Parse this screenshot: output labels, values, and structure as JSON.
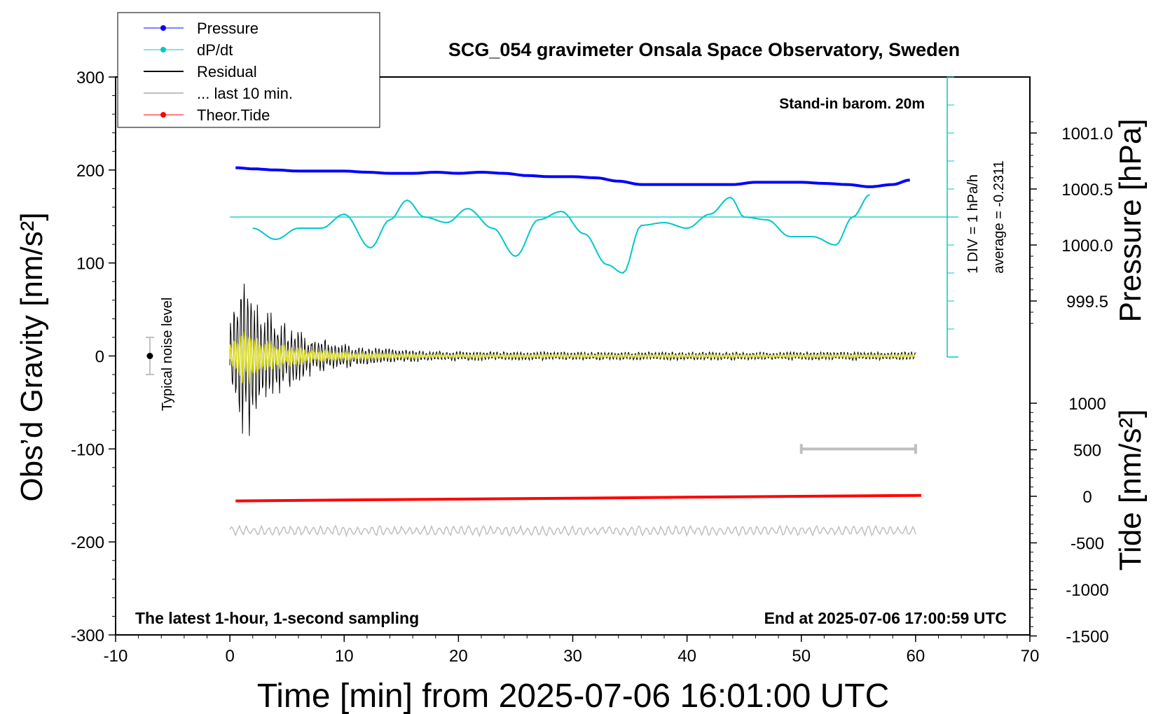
{
  "chart_data": {
    "type": "line",
    "title": "SCG_054 gravimeter Onsala Space Observatory, Sweden",
    "xlabel": "Time [min] from 2025-07-06 16:01:00 UTC",
    "ylabel_left": "Obs’d Gravity [nm/s²]",
    "ylabel_right_top": "Pressure [hPa]",
    "ylabel_right_bottom": "Tide [nm/s²]",
    "xlim": [
      -10,
      70
    ],
    "ylim_left": [
      -300,
      300
    ],
    "x_ticks": [
      "-10",
      "0",
      "10",
      "20",
      "30",
      "40",
      "50",
      "60",
      "70"
    ],
    "y_left_ticks": [
      "300",
      "200",
      "100",
      "0",
      "-100",
      "-200",
      "-300"
    ],
    "pressure_ticks": [
      "1001.0",
      "1000.5",
      "1000.0",
      "999.5"
    ],
    "tide_ticks": [
      "1000",
      "500",
      "0",
      "-500",
      "-1000",
      "-1500"
    ],
    "grid": false,
    "legend_position": "top-left",
    "legend": [
      {
        "label": "Pressure",
        "color": "#0000ff",
        "marker": "dot"
      },
      {
        "label": "dP/dt",
        "color": "#00c8c8",
        "marker": "dot"
      },
      {
        "label": "Residual",
        "color": "#000000",
        "marker": "line"
      },
      {
        "label": "... last 10 min.",
        "color": "#bfbfbf",
        "marker": "line"
      },
      {
        "label": "Theor.Tide",
        "color": "#ff0000",
        "marker": "dot"
      }
    ],
    "annotations": {
      "barometer": "Stand-in barom. 20m",
      "div_scale": "1 DIV = 1 hPa/h",
      "average": "average = -0.2311",
      "noise": "Typical noise level",
      "footer_left": "The latest 1-hour, 1-second sampling",
      "footer_right": "End at 2025-07-06 17:00:59 UTC"
    },
    "series": [
      {
        "name": "Pressure",
        "axis": "pressure_hPa",
        "x": [
          0.5,
          2,
          4,
          6,
          8,
          10,
          12,
          14,
          16,
          18,
          20,
          22,
          24,
          26,
          28,
          30,
          32,
          34,
          36,
          38,
          40,
          42,
          44,
          46,
          48,
          50,
          52,
          54,
          56,
          58,
          59.5
        ],
        "y": [
          1000.69,
          1000.68,
          1000.67,
          1000.66,
          1000.66,
          1000.66,
          1000.65,
          1000.64,
          1000.64,
          1000.65,
          1000.64,
          1000.65,
          1000.64,
          1000.62,
          1000.61,
          1000.61,
          1000.6,
          1000.57,
          1000.54,
          1000.54,
          1000.54,
          1000.54,
          1000.54,
          1000.56,
          1000.56,
          1000.56,
          1000.55,
          1000.54,
          1000.52,
          1000.54,
          1000.58
        ]
      },
      {
        "name": "dP/dt",
        "axis": "hPa_per_h_div",
        "x": [
          2,
          4,
          6,
          8,
          10,
          12.3,
          14,
          15.5,
          17,
          19,
          20.8,
          23,
          25,
          27,
          29,
          31,
          33,
          34.4,
          36,
          38,
          40,
          42,
          43.8,
          45,
          47,
          49,
          51,
          53,
          54.5,
          56
        ],
        "y": [
          4.6,
          4.2,
          4.6,
          4.6,
          5.1,
          3.9,
          4.9,
          5.6,
          5.0,
          4.8,
          5.3,
          4.6,
          3.6,
          4.9,
          5.2,
          4.4,
          3.3,
          3.0,
          4.7,
          4.8,
          4.6,
          5.1,
          5.7,
          5.0,
          4.9,
          4.3,
          4.3,
          4.0,
          5.0,
          5.8
        ],
        "reference_line": 5.0
      },
      {
        "name": "Residual",
        "axis": "nm_s2",
        "x_range": [
          0,
          60
        ],
        "note": "decaying earthquake-like oscillation, max amplitude ~100 nm/s² near x=1–3 min, ~5 nm/s² after x=25 min"
      },
      {
        "name": "Theor.Tide",
        "axis": "tide_nm_s2",
        "x": [
          0.5,
          10,
          20,
          30,
          40,
          50,
          60.5
        ],
        "y": [
          -50,
          -40,
          -30,
          -20,
          -10,
          0,
          10
        ]
      },
      {
        "name": "... last 10 min.",
        "axis": "nm_s2",
        "x_range": [
          0,
          60
        ],
        "offset": -188
      }
    ],
    "noise_marker": {
      "x": -7,
      "y": 0,
      "low": -20,
      "high": 20
    },
    "last_10min_bar": {
      "x_start": 50,
      "x_end": 60,
      "y": -100
    }
  },
  "colors": {
    "pressure": "#0000ff",
    "dpdt": "#00c8c8",
    "residual": "#000000",
    "residual_overlay": "#d8d800",
    "last10": "#bfbfbf",
    "tide": "#ff0000"
  }
}
